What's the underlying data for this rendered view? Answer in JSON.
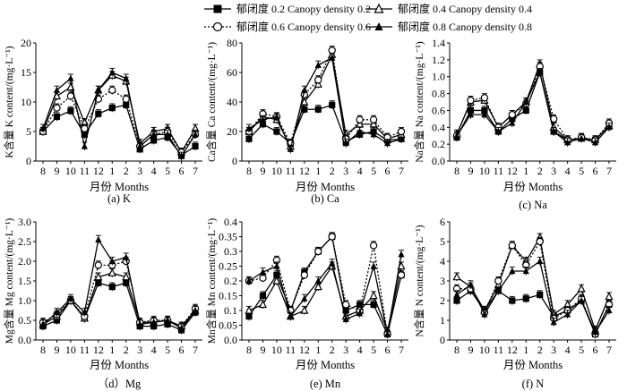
{
  "legend": [
    {
      "label": "郁闭度 0.2 Canopy density 0.2",
      "marker": "square",
      "line": "solid"
    },
    {
      "label": "郁闭度 0.4 Canopy density 0.4",
      "marker": "triangle-open",
      "line": "solid"
    },
    {
      "label": "郁闭度 0.6 Canopy density 0.6",
      "marker": "circle-open",
      "line": "dotted"
    },
    {
      "label": "郁闭度 0.8 Canopy density 0.8",
      "marker": "triangle",
      "line": "solid"
    }
  ],
  "chart_data": [
    {
      "type": "line",
      "id": "K",
      "caption": "(a) K",
      "ylabel": "K含量 K content/(mg·L⁻¹)",
      "xlabel": "月份 Months",
      "categories": [
        "8",
        "9",
        "10",
        "11",
        "12",
        "1",
        "2",
        "3",
        "4",
        "5",
        "6",
        "7"
      ],
      "ylim": [
        0,
        20
      ],
      "yticks": [
        0,
        5,
        10,
        15,
        20
      ],
      "series": [
        {
          "name": "郁闭度 0.2 Canopy density 0.2",
          "values": [
            5.0,
            7.5,
            8.5,
            4.5,
            8.0,
            9.0,
            9.5,
            2.0,
            3.5,
            4.0,
            1.0,
            2.5
          ]
        },
        {
          "name": "郁闭度 0.4 Canopy density 0.4",
          "values": [
            5.0,
            11.0,
            12.5,
            6.5,
            12.0,
            14.5,
            13.5,
            3.0,
            5.0,
            5.5,
            1.5,
            5.5
          ]
        },
        {
          "name": "郁闭度 0.6 Canopy density 0.6",
          "values": [
            5.0,
            9.0,
            11.0,
            5.5,
            10.5,
            12.0,
            10.5,
            2.5,
            4.5,
            5.0,
            1.5,
            4.5
          ]
        },
        {
          "name": "郁闭度 0.8 Canopy density 0.8",
          "values": [
            5.5,
            12.0,
            14.0,
            2.5,
            12.0,
            15.0,
            14.0,
            2.5,
            4.5,
            4.5,
            0.8,
            4.5
          ]
        }
      ]
    },
    {
      "type": "line",
      "id": "Ca",
      "caption": "(b) Ca",
      "ylabel": "Ca含量 Ca content/(mg·L⁻¹)",
      "xlabel": "月份 Months",
      "categories": [
        "8",
        "9",
        "10",
        "11",
        "12",
        "1",
        "2",
        "3",
        "4",
        "5",
        "6",
        "7"
      ],
      "ylim": [
        0,
        80
      ],
      "yticks": [
        0,
        20,
        40,
        60,
        80
      ],
      "series": [
        {
          "name": "郁闭度 0.2 Canopy density 0.2",
          "values": [
            15,
            25,
            20,
            12,
            35,
            35,
            38,
            13,
            18,
            20,
            14,
            15
          ]
        },
        {
          "name": "郁闭度 0.4 Canopy density 0.4",
          "values": [
            20,
            30,
            28,
            10,
            40,
            52,
            72,
            18,
            25,
            25,
            15,
            18
          ]
        },
        {
          "name": "郁闭度 0.6 Canopy density 0.6",
          "values": [
            20,
            32,
            30,
            12,
            45,
            55,
            75,
            15,
            28,
            28,
            16,
            20
          ]
        },
        {
          "name": "郁闭度 0.8 Canopy density 0.8",
          "values": [
            22,
            28,
            30,
            8,
            48,
            65,
            70,
            12,
            20,
            18,
            12,
            15
          ]
        }
      ]
    },
    {
      "type": "line",
      "id": "Na",
      "caption": "(c) Na",
      "ylabel": "Na含量 Na content/(mg·L⁻¹)",
      "xlabel": "月份 Months",
      "categories": [
        "8",
        "9",
        "10",
        "11",
        "12",
        "1",
        "2",
        "3",
        "4",
        "5",
        "6",
        "7"
      ],
      "ylim": [
        0,
        1.4
      ],
      "yticks": [
        0,
        0.2,
        0.4,
        0.6,
        0.8,
        1.0,
        1.2,
        1.4
      ],
      "series": [
        {
          "name": "郁闭度 0.2 Canopy density 0.2",
          "values": [
            0.28,
            0.6,
            0.6,
            0.35,
            0.5,
            0.6,
            1.05,
            0.35,
            0.25,
            0.27,
            0.25,
            0.42
          ]
        },
        {
          "name": "郁闭度 0.4 Canopy density 0.4",
          "values": [
            0.32,
            0.7,
            0.72,
            0.4,
            0.55,
            0.7,
            1.15,
            0.4,
            0.25,
            0.27,
            0.25,
            0.42
          ]
        },
        {
          "name": "郁闭度 0.6 Canopy density 0.6",
          "values": [
            0.3,
            0.72,
            0.75,
            0.4,
            0.55,
            0.68,
            1.12,
            0.5,
            0.25,
            0.28,
            0.25,
            0.45
          ]
        },
        {
          "name": "郁闭度 0.8 Canopy density 0.8",
          "values": [
            0.3,
            0.55,
            0.55,
            0.35,
            0.45,
            0.7,
            1.05,
            0.35,
            0.22,
            0.27,
            0.22,
            0.4
          ]
        }
      ]
    },
    {
      "type": "line",
      "id": "Mg",
      "caption": "（d）Mg",
      "ylabel": "Mg含量 Mg content/(mg·L⁻¹)",
      "xlabel": "月份 Months",
      "categories": [
        "8",
        "9",
        "10",
        "11",
        "12",
        "1",
        "2",
        "3",
        "4",
        "5",
        "6",
        "7"
      ],
      "ylim": [
        0,
        3.0
      ],
      "yticks": [
        0,
        0.5,
        1.0,
        1.5,
        2.0,
        2.5,
        3.0
      ],
      "series": [
        {
          "name": "郁闭度 0.2 Canopy density 0.2",
          "values": [
            0.35,
            0.5,
            1.0,
            0.55,
            1.45,
            1.35,
            1.45,
            0.35,
            0.35,
            0.4,
            0.25,
            0.7
          ]
        },
        {
          "name": "郁闭度 0.4 Canopy density 0.4",
          "values": [
            0.4,
            0.6,
            1.0,
            0.55,
            1.6,
            1.7,
            1.6,
            0.45,
            0.45,
            0.5,
            0.35,
            0.75
          ]
        },
        {
          "name": "郁闭度 0.6 Canopy density 0.6",
          "values": [
            0.45,
            0.65,
            1.0,
            0.6,
            1.9,
            1.9,
            2.0,
            0.45,
            0.5,
            0.5,
            0.35,
            0.8
          ]
        },
        {
          "name": "郁闭度 0.8 Canopy density 0.8",
          "values": [
            0.4,
            0.7,
            1.05,
            0.7,
            2.55,
            2.0,
            2.1,
            0.4,
            0.45,
            0.5,
            0.3,
            0.75
          ]
        }
      ]
    },
    {
      "type": "line",
      "id": "Mn",
      "caption": "(e) Mn",
      "ylabel": "Mn含量 Mn content/(mg·L⁻¹)",
      "xlabel": "月份 Months",
      "categories": [
        "8",
        "9",
        "10",
        "11",
        "12",
        "1",
        "2",
        "3",
        "4",
        "5",
        "6",
        "7"
      ],
      "ylim": [
        0,
        0.4
      ],
      "yticks": [
        0,
        0.05,
        0.1,
        0.15,
        0.2,
        0.25,
        0.3,
        0.35,
        0.4
      ],
      "series": [
        {
          "name": "郁闭度 0.2 Canopy density 0.2",
          "values": [
            0.08,
            0.15,
            0.22,
            0.1,
            0.23,
            0.3,
            0.35,
            0.1,
            0.12,
            0.12,
            0.02,
            0.22
          ]
        },
        {
          "name": "郁闭度 0.4 Canopy density 0.4",
          "values": [
            0.1,
            0.12,
            0.2,
            0.08,
            0.1,
            0.18,
            0.25,
            0.08,
            0.1,
            0.15,
            0.03,
            0.25
          ]
        },
        {
          "name": "郁闭度 0.6 Canopy density 0.6",
          "values": [
            0.2,
            0.21,
            0.27,
            0.1,
            0.22,
            0.3,
            0.35,
            0.12,
            0.1,
            0.32,
            0.02,
            0.22
          ]
        },
        {
          "name": "郁闭度 0.8 Canopy density 0.8",
          "values": [
            0.2,
            0.23,
            0.25,
            0.08,
            0.14,
            0.2,
            0.26,
            0.07,
            0.09,
            0.25,
            0.02,
            0.29
          ]
        }
      ]
    },
    {
      "type": "line",
      "id": "N",
      "caption": "(f) N",
      "ylabel": "N含量 N content/(mg·L⁻¹)",
      "xlabel": "月份 Months",
      "categories": [
        "8",
        "9",
        "10",
        "11",
        "12",
        "1",
        "2",
        "3",
        "4",
        "5",
        "6",
        "7"
      ],
      "ylim": [
        0,
        6
      ],
      "yticks": [
        0,
        1,
        2,
        3,
        4,
        5,
        6
      ],
      "series": [
        {
          "name": "郁闭度 0.2 Canopy density 0.2",
          "values": [
            2.0,
            2.5,
            1.5,
            2.5,
            2.0,
            2.1,
            2.3,
            1.2,
            1.5,
            2.0,
            0.3,
            1.8
          ]
        },
        {
          "name": "郁闭度 0.4 Canopy density 0.4",
          "values": [
            3.2,
            2.7,
            1.5,
            2.8,
            4.8,
            4.0,
            5.2,
            1.3,
            1.8,
            2.6,
            0.5,
            2.2
          ]
        },
        {
          "name": "郁闭度 0.6 Canopy density 0.6",
          "values": [
            2.6,
            2.6,
            1.4,
            3.0,
            4.8,
            3.8,
            5.0,
            1.1,
            1.5,
            2.1,
            0.3,
            1.8
          ]
        },
        {
          "name": "郁闭度 0.8 Canopy density 0.8",
          "values": [
            2.3,
            2.8,
            1.3,
            2.5,
            3.5,
            3.5,
            4.0,
            0.9,
            1.3,
            2.0,
            0.4,
            1.5
          ]
        }
      ]
    }
  ]
}
